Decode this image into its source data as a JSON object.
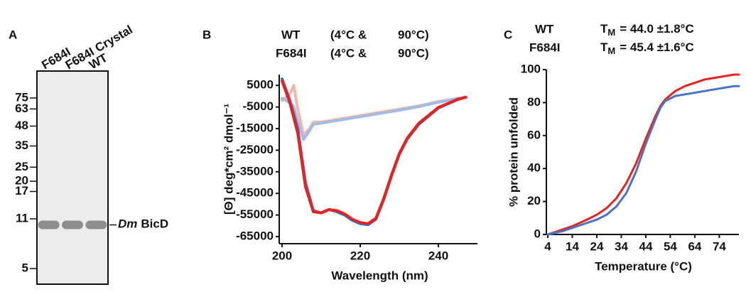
{
  "chart_data": [
    {
      "type": "gel",
      "panel": "A",
      "lanes": [
        "F684I",
        "F684I Crystal",
        "WT"
      ],
      "bands": [
        10,
        10,
        10
      ],
      "band_label": {
        "italic": "Dm",
        "text": "BicD"
      },
      "log_scale": true,
      "ylim": [
        3.9,
        115
      ],
      "yticks": [
        75,
        63,
        48,
        35,
        25,
        20,
        17,
        11,
        5
      ]
    },
    {
      "type": "line",
      "panel": "B",
      "legend": [
        {
          "name": "WT",
          "cold": "(4°C &",
          "hot": "90°C)",
          "color": "#2b59a8",
          "hot_color": "#9fbbe6"
        },
        {
          "name": "F684I",
          "cold": "(4°C &",
          "hot": "90°C)",
          "color": "#e8231f",
          "hot_color": "#f3b7a9"
        }
      ],
      "xlabel": "Wavelength (nm)",
      "ylabel": "[Θ] deg*cm² dmol⁻¹",
      "xlim": [
        200,
        250
      ],
      "xticks": [
        200,
        220,
        240
      ],
      "ylim": [
        -65000,
        10000
      ],
      "yticks": [
        5000,
        -5000,
        -15000,
        -25000,
        -35000,
        -45000,
        -55000,
        -65000
      ],
      "series": [
        {
          "color": "#f3b7a9",
          "x": [
            200,
            202,
            203,
            204,
            205.5,
            207,
            208,
            210,
            215,
            220,
            225,
            230,
            235,
            240,
            245,
            247
          ],
          "values": [
            -2000,
            1000,
            5000,
            -6000,
            -18000,
            -15000,
            -12000,
            -12000,
            -10500,
            -9000,
            -7500,
            -6000,
            -4500,
            -2500,
            -1000,
            -500
          ]
        },
        {
          "color": "#9fbbe6",
          "x": [
            200,
            202,
            203,
            204,
            205.5,
            207,
            208,
            210,
            215,
            220,
            225,
            230,
            235,
            240,
            245,
            247
          ],
          "values": [
            -1000,
            -3000,
            -5000,
            -12000,
            -20000,
            -16000,
            -13000,
            -12500,
            -11000,
            -9500,
            -8000,
            -6500,
            -4800,
            -2800,
            -1200,
            -500
          ]
        },
        {
          "color": "#2b73d0",
          "x": [
            200,
            202,
            204,
            206,
            208,
            210,
            212,
            214,
            216,
            218,
            220,
            222,
            224,
            226,
            228,
            230,
            232,
            235,
            240,
            245,
            247
          ],
          "values": [
            8000,
            -2000,
            -15000,
            -40000,
            -53000,
            -54000,
            -52500,
            -53500,
            -55000,
            -57500,
            -59000,
            -59500,
            -57000,
            -48000,
            -37000,
            -27000,
            -20000,
            -13000,
            -5500,
            -1500,
            -500
          ]
        },
        {
          "color": "#e8231f",
          "x": [
            200,
            202,
            204,
            206,
            208,
            210,
            212,
            214,
            216,
            218,
            220,
            222,
            224,
            226,
            228,
            230,
            232,
            235,
            240,
            245,
            247
          ],
          "values": [
            7000,
            -3000,
            -17000,
            -42000,
            -53500,
            -54000,
            -52500,
            -53000,
            -54500,
            -57000,
            -58500,
            -59000,
            -56500,
            -47500,
            -36500,
            -26500,
            -19500,
            -12500,
            -5200,
            -1400,
            -500
          ]
        }
      ]
    },
    {
      "type": "line",
      "panel": "C",
      "legend": [
        {
          "name": "WT",
          "symbol": "T",
          "sub": "M",
          "text": "= 44.0 ±1.8°C",
          "color": "#2b59a8"
        },
        {
          "name": "F684I",
          "symbol": "T",
          "sub": "M",
          "text": "= 45.4 ±1.6°C",
          "color": "#e8231f"
        }
      ],
      "xlabel": "Temperature (°C)",
      "ylabel": "% protein unfolded",
      "xlim": [
        4,
        82
      ],
      "xticks": [
        4,
        14,
        24,
        34,
        44,
        54,
        64,
        74
      ],
      "ylim": [
        0,
        100
      ],
      "yticks": [
        0,
        20,
        40,
        60,
        80,
        100
      ],
      "series": [
        {
          "color": "#e8231f",
          "x": [
            4,
            10,
            14,
            20,
            24,
            28,
            32,
            36,
            40,
            44,
            48,
            50,
            52,
            56,
            60,
            64,
            68,
            72,
            76,
            80,
            82
          ],
          "values": [
            0,
            3,
            5,
            9,
            12,
            16,
            22,
            31,
            43,
            58,
            72,
            78,
            82,
            87,
            90,
            92,
            94,
            95,
            96,
            97,
            97
          ]
        },
        {
          "color": "#4a73c4",
          "x": [
            4,
            10,
            14,
            20,
            24,
            28,
            32,
            36,
            40,
            44,
            48,
            50,
            52,
            56,
            60,
            64,
            68,
            72,
            76,
            80,
            82
          ],
          "values": [
            0,
            2,
            4,
            7,
            9,
            12,
            17,
            25,
            38,
            55,
            70,
            77,
            81,
            84,
            85,
            86,
            87,
            88,
            89,
            90,
            90
          ]
        }
      ]
    }
  ]
}
